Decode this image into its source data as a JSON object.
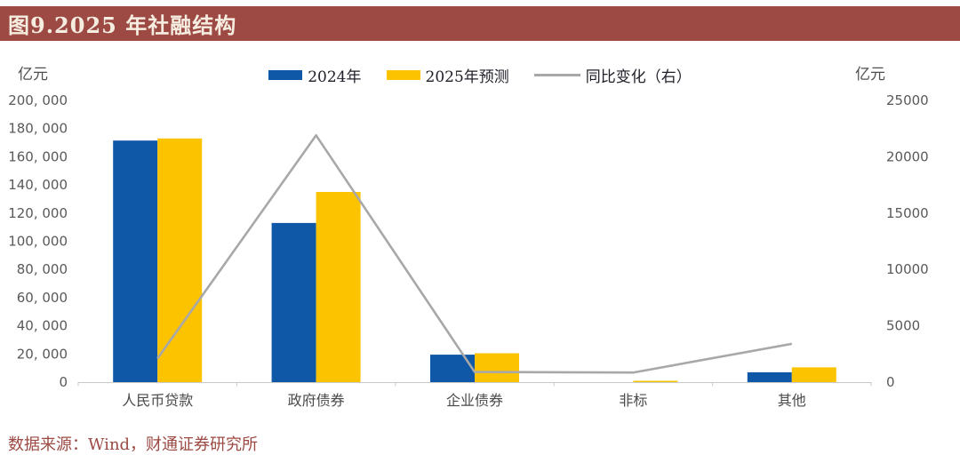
{
  "header": {
    "title": "图9.2025 年社融结构"
  },
  "footer": {
    "source": "数据来源：Wind，财通证券研究所"
  },
  "colors": {
    "accent_red": "#9C4A43",
    "title_text": "#F6EDE1",
    "bar_2024": "#0F57A7",
    "bar_2025": "#FBC300",
    "line_yoy": "#A8A8A8",
    "axis_text": "#595959",
    "category_text": "#4a4a4a",
    "axis_line": "#C9C9C9"
  },
  "chart_data": {
    "type": "bar",
    "subtype": "grouped-bars-with-line",
    "title": "图9.2025 年社融结构",
    "categories": [
      "人民币贷款",
      "政府债券",
      "企业债券",
      "非标",
      "其他"
    ],
    "series": [
      {
        "name": "2024年",
        "type": "bar",
        "axis": "left",
        "color": "#0F57A7",
        "values": [
          171500,
          113000,
          19500,
          0,
          7000
        ]
      },
      {
        "name": "2025年预测",
        "type": "bar",
        "axis": "left",
        "color": "#FBC300",
        "values": [
          173000,
          135000,
          20500,
          500,
          10500
        ]
      },
      {
        "name": "同比变化（右）",
        "type": "line",
        "axis": "right",
        "color": "#A8A8A8",
        "values": [
          2100,
          21900,
          900,
          850,
          3400
        ]
      }
    ],
    "left_axis": {
      "unit": "亿元",
      "min": 0,
      "max": 200000,
      "step": 20000,
      "tick_labels": [
        "0",
        "20, 000",
        "40, 000",
        "60, 000",
        "80, 000",
        "100, 000",
        "120, 000",
        "140, 000",
        "160, 000",
        "180, 000",
        "200, 000"
      ]
    },
    "right_axis": {
      "unit": "亿元",
      "min": 0,
      "max": 25000,
      "step": 5000,
      "tick_labels": [
        "0",
        "5000",
        "10000",
        "15000",
        "20000",
        "25000"
      ]
    },
    "legend_position": "top-center",
    "grid": false
  }
}
